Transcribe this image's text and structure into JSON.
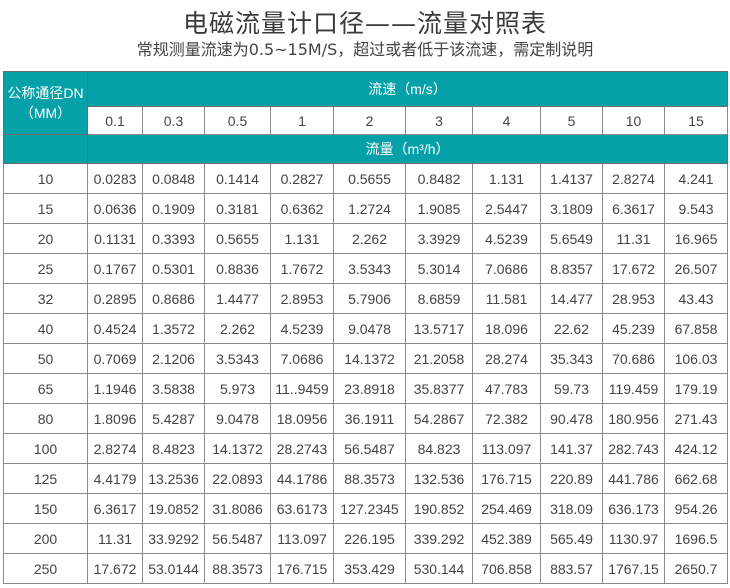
{
  "title": "电磁流量计口径——流量对照表",
  "subtitle": "常规测量流速为0.5~15M/S，超过或者低于该流速，需定制说明",
  "table": {
    "dn_header_line1": "公称通径DN",
    "dn_header_line2": "（MM）",
    "velocity_header": "流速（m/s）",
    "velocities": [
      "0.1",
      "0.3",
      "0.5",
      "1",
      "2",
      "3",
      "4",
      "5",
      "10",
      "15"
    ],
    "flow_header": "流量（m³/h）",
    "colors": {
      "header_bg": "#06a1a8",
      "header_text": "#ffffff"
    },
    "rows": [
      {
        "dn": "10",
        "values": [
          "0.0283",
          "0.0848",
          "0.1414",
          "0.2827",
          "0.5655",
          "0.8482",
          "1.131",
          "1.4137",
          "2.8274",
          "4.241"
        ]
      },
      {
        "dn": "15",
        "values": [
          "0.0636",
          "0.1909",
          "0.3181",
          "0.6362",
          "1.2724",
          "1.9085",
          "2.5447",
          "3.1809",
          "6.3617",
          "9.543"
        ]
      },
      {
        "dn": "20",
        "values": [
          "0.1131",
          "0.3393",
          "0.5655",
          "1.131",
          "2.262",
          "3.3929",
          "4.5239",
          "5.6549",
          "11.31",
          "16.965"
        ]
      },
      {
        "dn": "25",
        "values": [
          "0.1767",
          "0.5301",
          "0.8836",
          "1.7672",
          "3.5343",
          "5.3014",
          "7.0686",
          "8.8357",
          "17.672",
          "26.507"
        ]
      },
      {
        "dn": "32",
        "values": [
          "0.2895",
          "0.8686",
          "1.4477",
          "2.8953",
          "5.7906",
          "8.6859",
          "11.581",
          "14.477",
          "28.953",
          "43.43"
        ]
      },
      {
        "dn": "40",
        "values": [
          "0.4524",
          "1.3572",
          "2.262",
          "4.5239",
          "9.0478",
          "13.5717",
          "18.096",
          "22.62",
          "45.239",
          "67.858"
        ]
      },
      {
        "dn": "50",
        "values": [
          "0.7069",
          "2.1206",
          "3.5343",
          "7.0686",
          "14.1372",
          "21.2058",
          "28.274",
          "35.343",
          "70.686",
          "106.03"
        ]
      },
      {
        "dn": "65",
        "values": [
          "1.1946",
          "3.5838",
          "5.973",
          "11..9459",
          "23.8918",
          "35.8377",
          "47.783",
          "59.73",
          "119.459",
          "179.19"
        ]
      },
      {
        "dn": "80",
        "values": [
          "1.8096",
          "5.4287",
          "9.0478",
          "18.0956",
          "36.1911",
          "54.2867",
          "72.382",
          "90.478",
          "180.956",
          "271.43"
        ]
      },
      {
        "dn": "100",
        "values": [
          "2.8274",
          "8.4823",
          "14.1372",
          "28.2743",
          "56.5487",
          "84.823",
          "113.097",
          "141.37",
          "282.743",
          "424.12"
        ]
      },
      {
        "dn": "125",
        "values": [
          "4.4179",
          "13.2536",
          "22.0893",
          "44.1786",
          "88.3573",
          "132.536",
          "176.715",
          "220.89",
          "441.786",
          "662.68"
        ]
      },
      {
        "dn": "150",
        "values": [
          "6.3617",
          "19.0852",
          "31.8086",
          "63.6173",
          "127.2345",
          "190.852",
          "254.469",
          "318.09",
          "636.173",
          "954.26"
        ]
      },
      {
        "dn": "200",
        "values": [
          "11.31",
          "33.9292",
          "56.5487",
          "113.097",
          "226.195",
          "339.292",
          "452.389",
          "565.49",
          "1130.97",
          "1696.5"
        ]
      },
      {
        "dn": "250",
        "values": [
          "17.672",
          "53.0144",
          "88.3573",
          "176.715",
          "353.429",
          "530.144",
          "706.858",
          "883.57",
          "1767.15",
          "2650.7"
        ]
      }
    ]
  }
}
